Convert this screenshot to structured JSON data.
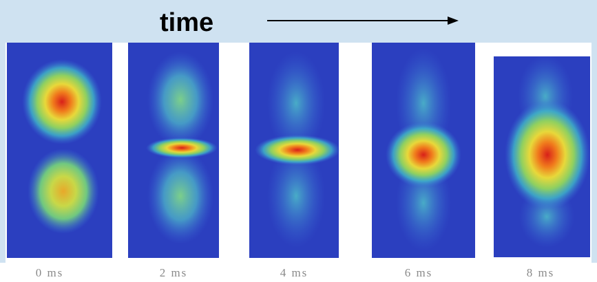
{
  "header": {
    "title": "time"
  },
  "panels": [
    {
      "label": "0 ms"
    },
    {
      "label": "2 ms"
    },
    {
      "label": "4 ms"
    },
    {
      "label": "6 ms"
    },
    {
      "label": "8 ms"
    }
  ]
}
